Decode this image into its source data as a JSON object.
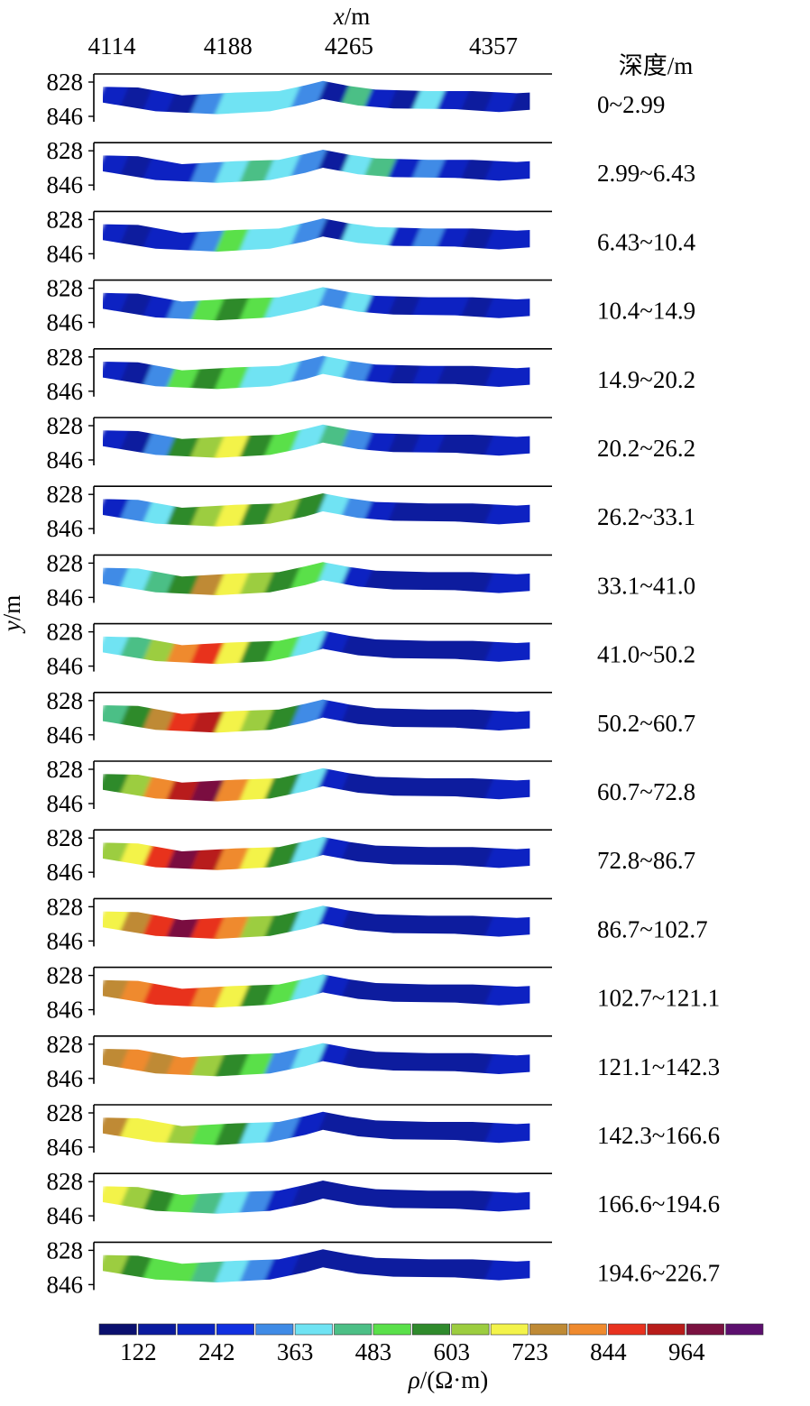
{
  "chart_data": {
    "type": "heatmap",
    "description_x_axis": {
      "label_italic": "x",
      "label_unit": "/m",
      "ticks": [
        4114,
        4188,
        4265,
        4357
      ]
    },
    "y_axis": {
      "label_italic": "y",
      "label_unit": "/m",
      "ticks": [
        828,
        846
      ]
    },
    "depth_header": "深度/m",
    "depth_slices": [
      "0~2.99",
      "2.99~6.43",
      "6.43~10.4",
      "10.4~14.9",
      "14.9~20.2",
      "20.2~26.2",
      "26.2~33.1",
      "33.1~41.0",
      "41.0~50.2",
      "50.2~60.7",
      "60.7~72.8",
      "72.8~86.7",
      "86.7~102.7",
      "102.7~121.1",
      "121.1~142.3",
      "142.3~166.6",
      "166.6~194.6",
      "194.6~226.7"
    ],
    "colorbar": {
      "colors": [
        "#0a0f6e",
        "#0a1a9e",
        "#0b24c2",
        "#1030e0",
        "#3f8be6",
        "#6fe3f3",
        "#4cbf86",
        "#5ae04a",
        "#2f8a2c",
        "#9ccd3f",
        "#f3f34a",
        "#bf8a35",
        "#ef8a2e",
        "#e8321f",
        "#b81c1a",
        "#7a1140",
        "#5c0f6e"
      ],
      "tick_values": [
        122,
        242,
        363,
        483,
        603,
        723,
        844,
        964
      ],
      "label_italic": "ρ",
      "label_unit": "/(Ω·m)"
    },
    "profiles": [
      [
        "#0b24c2",
        "#0a1a9e",
        "#0b24c2",
        "#0a1a9e",
        "#3f8be6",
        "#6fe3f3",
        "#6fe3f3",
        "#6fe3f3",
        "#3f8be6",
        "#0a1a9e",
        "#4cbf86",
        "#0b24c2",
        "#0a1a9e",
        "#6fe3f3",
        "#0b24c2",
        "#0a1a9e",
        "#0b24c2",
        "#0a1a9e"
      ],
      [
        "#0b24c2",
        "#0a1a9e",
        "#0b24c2",
        "#0b24c2",
        "#3f8be6",
        "#6fe3f3",
        "#4cbf86",
        "#6fe3f3",
        "#3f8be6",
        "#0a1a9e",
        "#6fe3f3",
        "#4cbf86",
        "#0b24c2",
        "#3f8be6",
        "#0b24c2",
        "#0a1a9e",
        "#0b24c2",
        "#0b24c2"
      ],
      [
        "#0b24c2",
        "#0a1a9e",
        "#0b24c2",
        "#0b24c2",
        "#3f8be6",
        "#5ae04a",
        "#6fe3f3",
        "#6fe3f3",
        "#3f8be6",
        "#0a1a9e",
        "#6fe3f3",
        "#6fe3f3",
        "#0b24c2",
        "#3f8be6",
        "#0b24c2",
        "#0a1a9e",
        "#0b24c2",
        "#0b24c2"
      ],
      [
        "#0b24c2",
        "#0a1a9e",
        "#0b24c2",
        "#3f8be6",
        "#5ae04a",
        "#2f8a2c",
        "#5ae04a",
        "#6fe3f3",
        "#6fe3f3",
        "#3f8be6",
        "#6fe3f3",
        "#0b24c2",
        "#0a1a9e",
        "#0b24c2",
        "#0b24c2",
        "#0a1a9e",
        "#0b24c2",
        "#0b24c2"
      ],
      [
        "#0b24c2",
        "#0a1a9e",
        "#3f8be6",
        "#5ae04a",
        "#2f8a2c",
        "#5ae04a",
        "#6fe3f3",
        "#6fe3f3",
        "#3f8be6",
        "#6fe3f3",
        "#3f8be6",
        "#0b24c2",
        "#0a1a9e",
        "#0b24c2",
        "#0a1a9e",
        "#0a1a9e",
        "#0b24c2",
        "#0b24c2"
      ],
      [
        "#0b24c2",
        "#0a1a9e",
        "#3f8be6",
        "#2f8a2c",
        "#9ccd3f",
        "#f3f34a",
        "#2f8a2c",
        "#5ae04a",
        "#6fe3f3",
        "#4cbf86",
        "#3f8be6",
        "#0b24c2",
        "#0a1a9e",
        "#0b24c2",
        "#0a1a9e",
        "#0a1a9e",
        "#0b24c2",
        "#0b24c2"
      ],
      [
        "#0b24c2",
        "#3f8be6",
        "#6fe3f3",
        "#2f8a2c",
        "#9ccd3f",
        "#f3f34a",
        "#2f8a2c",
        "#9ccd3f",
        "#2f8a2c",
        "#6fe3f3",
        "#3f8be6",
        "#0b24c2",
        "#0a1a9e",
        "#0a1a9e",
        "#0a1a9e",
        "#0a1a9e",
        "#0b24c2",
        "#0b24c2"
      ],
      [
        "#3f8be6",
        "#6fe3f3",
        "#4cbf86",
        "#2f8a2c",
        "#bf8a35",
        "#f3f34a",
        "#9ccd3f",
        "#2f8a2c",
        "#5ae04a",
        "#6fe3f3",
        "#0b24c2",
        "#0a1a9e",
        "#0a1a9e",
        "#0a1a9e",
        "#0a1a9e",
        "#0a1a9e",
        "#0b24c2",
        "#0b24c2"
      ],
      [
        "#6fe3f3",
        "#4cbf86",
        "#9ccd3f",
        "#ef8a2e",
        "#e8321f",
        "#f3f34a",
        "#2f8a2c",
        "#5ae04a",
        "#6fe3f3",
        "#0b24c2",
        "#0a1a9e",
        "#0a1a9e",
        "#0a1a9e",
        "#0a1a9e",
        "#0a1a9e",
        "#0a1a9e",
        "#0b24c2",
        "#0b24c2"
      ],
      [
        "#4cbf86",
        "#2f8a2c",
        "#bf8a35",
        "#e8321f",
        "#b81c1a",
        "#f3f34a",
        "#9ccd3f",
        "#2f8a2c",
        "#3f8be6",
        "#0b24c2",
        "#0a1a9e",
        "#0a1a9e",
        "#0a1a9e",
        "#0a1a9e",
        "#0a1a9e",
        "#0a1a9e",
        "#0b24c2",
        "#0b24c2"
      ],
      [
        "#2f8a2c",
        "#9ccd3f",
        "#ef8a2e",
        "#b81c1a",
        "#7a1140",
        "#ef8a2e",
        "#f3f34a",
        "#2f8a2c",
        "#6fe3f3",
        "#0b24c2",
        "#0a1a9e",
        "#0a1a9e",
        "#0a1a9e",
        "#0a1a9e",
        "#0a1a9e",
        "#0a1a9e",
        "#0b24c2",
        "#0b24c2"
      ],
      [
        "#9ccd3f",
        "#f3f34a",
        "#e8321f",
        "#7a1140",
        "#b81c1a",
        "#ef8a2e",
        "#f3f34a",
        "#2f8a2c",
        "#6fe3f3",
        "#0b24c2",
        "#0a1a9e",
        "#0a1a9e",
        "#0a1a9e",
        "#0a1a9e",
        "#0a1a9e",
        "#0a1a9e",
        "#0b24c2",
        "#0b24c2"
      ],
      [
        "#f3f34a",
        "#bf8a35",
        "#e8321f",
        "#7a1140",
        "#e8321f",
        "#ef8a2e",
        "#9ccd3f",
        "#2f8a2c",
        "#6fe3f3",
        "#0b24c2",
        "#0a1a9e",
        "#0a1a9e",
        "#0a1a9e",
        "#0a1a9e",
        "#0a1a9e",
        "#0a1a9e",
        "#0b24c2",
        "#0b24c2"
      ],
      [
        "#bf8a35",
        "#ef8a2e",
        "#e8321f",
        "#e8321f",
        "#ef8a2e",
        "#f3f34a",
        "#2f8a2c",
        "#5ae04a",
        "#6fe3f3",
        "#0b24c2",
        "#0a1a9e",
        "#0a1a9e",
        "#0a1a9e",
        "#0a1a9e",
        "#0a1a9e",
        "#0a1a9e",
        "#0b24c2",
        "#0b24c2"
      ],
      [
        "#bf8a35",
        "#ef8a2e",
        "#bf8a35",
        "#ef8a2e",
        "#9ccd3f",
        "#2f8a2c",
        "#5ae04a",
        "#3f8be6",
        "#6fe3f3",
        "#0b24c2",
        "#0a1a9e",
        "#0a1a9e",
        "#0a1a9e",
        "#0a1a9e",
        "#0a1a9e",
        "#0a1a9e",
        "#0b24c2",
        "#0b24c2"
      ],
      [
        "#bf8a35",
        "#f3f34a",
        "#f3f34a",
        "#9ccd3f",
        "#5ae04a",
        "#2f8a2c",
        "#6fe3f3",
        "#3f8be6",
        "#0b24c2",
        "#0a1a9e",
        "#0a1a9e",
        "#0a1a9e",
        "#0a1a9e",
        "#0a1a9e",
        "#0a1a9e",
        "#0a1a9e",
        "#0b24c2",
        "#0b24c2"
      ],
      [
        "#f3f34a",
        "#9ccd3f",
        "#2f8a2c",
        "#5ae04a",
        "#4cbf86",
        "#6fe3f3",
        "#3f8be6",
        "#0b24c2",
        "#0a1a9e",
        "#0a1a9e",
        "#0a1a9e",
        "#0a1a9e",
        "#0a1a9e",
        "#0a1a9e",
        "#0a1a9e",
        "#0a1a9e",
        "#0b24c2",
        "#0b24c2"
      ],
      [
        "#9ccd3f",
        "#2f8a2c",
        "#5ae04a",
        "#5ae04a",
        "#4cbf86",
        "#6fe3f3",
        "#3f8be6",
        "#0b24c2",
        "#0a1a9e",
        "#0a1a9e",
        "#0a1a9e",
        "#0a1a9e",
        "#0a1a9e",
        "#0a1a9e",
        "#0a1a9e",
        "#0a1a9e",
        "#0b24c2",
        "#0b24c2"
      ]
    ]
  }
}
